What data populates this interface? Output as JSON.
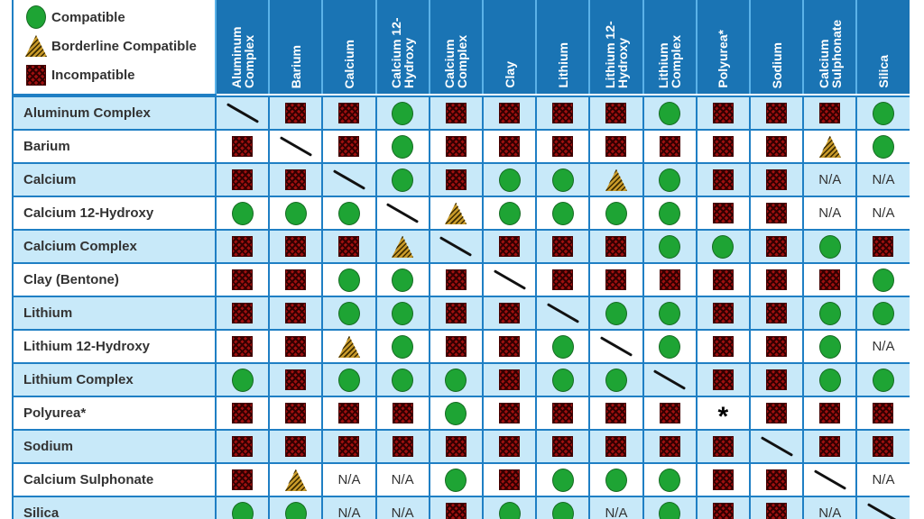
{
  "chart_data": {
    "type": "table",
    "legend": {
      "C": "Compatible",
      "B": "Borderline Compatible",
      "I": "Incompatible"
    },
    "columns": [
      "Aluminum Complex",
      "Barium",
      "Calcium",
      "Calcium 12-Hydroxy",
      "Calcium Complex",
      "Clay",
      "Lithium",
      "Lithium 12-Hydroxy",
      "Lithium Complex",
      "Polyurea*",
      "Sodium",
      "Calcium Sulphonate",
      "Silica"
    ],
    "rows": [
      {
        "label": "Aluminum Complex",
        "values": [
          "D",
          "I",
          "I",
          "C",
          "I",
          "I",
          "I",
          "I",
          "C",
          "I",
          "I",
          "I",
          "C"
        ]
      },
      {
        "label": "Barium",
        "values": [
          "I",
          "D",
          "I",
          "C",
          "I",
          "I",
          "I",
          "I",
          "I",
          "I",
          "I",
          "B",
          "C"
        ]
      },
      {
        "label": "Calcium",
        "values": [
          "I",
          "I",
          "D",
          "C",
          "I",
          "C",
          "C",
          "B",
          "C",
          "I",
          "I",
          "N/A",
          "N/A"
        ]
      },
      {
        "label": "Calcium 12-Hydroxy",
        "values": [
          "C",
          "C",
          "C",
          "D",
          "B",
          "C",
          "C",
          "C",
          "C",
          "I",
          "I",
          "N/A",
          "N/A"
        ]
      },
      {
        "label": "Calcium Complex",
        "values": [
          "I",
          "I",
          "I",
          "B",
          "D",
          "I",
          "I",
          "I",
          "C",
          "C",
          "I",
          "C",
          "I"
        ]
      },
      {
        "label": "Clay (Bentone)",
        "values": [
          "I",
          "I",
          "C",
          "C",
          "I",
          "D",
          "I",
          "I",
          "I",
          "I",
          "I",
          "I",
          "C"
        ]
      },
      {
        "label": "Lithium",
        "values": [
          "I",
          "I",
          "C",
          "C",
          "I",
          "I",
          "D",
          "C",
          "C",
          "I",
          "I",
          "C",
          "C"
        ]
      },
      {
        "label": "Lithium 12-Hydroxy",
        "values": [
          "I",
          "I",
          "B",
          "C",
          "I",
          "I",
          "C",
          "D",
          "C",
          "I",
          "I",
          "C",
          "N/A"
        ]
      },
      {
        "label": "Lithium Complex",
        "values": [
          "C",
          "I",
          "C",
          "C",
          "C",
          "I",
          "C",
          "C",
          "D",
          "I",
          "I",
          "C",
          "C"
        ]
      },
      {
        "label": "Polyurea*",
        "values": [
          "I",
          "I",
          "I",
          "I",
          "C",
          "I",
          "I",
          "I",
          "I",
          "*",
          "I",
          "I",
          "I"
        ]
      },
      {
        "label": "Sodium",
        "values": [
          "I",
          "I",
          "I",
          "I",
          "I",
          "I",
          "I",
          "I",
          "I",
          "I",
          "D",
          "I",
          "I"
        ]
      },
      {
        "label": "Calcium Sulphonate",
        "values": [
          "I",
          "B",
          "N/A",
          "N/A",
          "C",
          "I",
          "C",
          "C",
          "C",
          "I",
          "I",
          "D",
          "N/A"
        ]
      },
      {
        "label": "Silica",
        "values": [
          "C",
          "C",
          "N/A",
          "N/A",
          "I",
          "C",
          "C",
          "N/A",
          "C",
          "I",
          "I",
          "N/A",
          "D"
        ]
      }
    ],
    "colors": {
      "header": "#1a74b4",
      "row_alt": "#c8e9f9",
      "grid": "#1f7fc4",
      "compatible": "#1ea434",
      "incompatible": "#a01010",
      "borderline": "#c89a2a"
    }
  }
}
